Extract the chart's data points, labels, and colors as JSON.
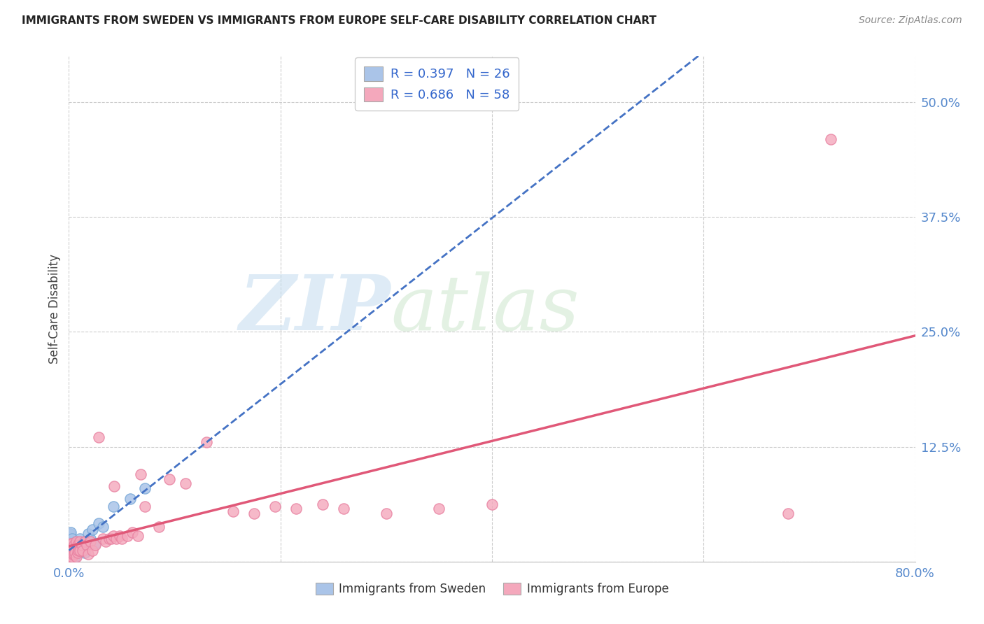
{
  "title": "IMMIGRANTS FROM SWEDEN VS IMMIGRANTS FROM EUROPE SELF-CARE DISABILITY CORRELATION CHART",
  "source": "Source: ZipAtlas.com",
  "ylabel": "Self-Care Disability",
  "watermark_zip": "ZIP",
  "watermark_atlas": "atlas",
  "xlim": [
    0.0,
    0.8
  ],
  "ylim": [
    0.0,
    0.55
  ],
  "sweden_R": 0.397,
  "sweden_N": 26,
  "europe_R": 0.686,
  "europe_N": 58,
  "sweden_color": "#aac4e8",
  "sweden_edge": "#7aaad8",
  "europe_color": "#f4a8bc",
  "europe_edge": "#e880a0",
  "sweden_line_color": "#4472c4",
  "europe_line_color": "#e05878",
  "background_color": "#ffffff",
  "grid_color": "#cccccc",
  "tick_color": "#5588cc",
  "sweden_x": [
    0.001,
    0.001,
    0.002,
    0.002,
    0.002,
    0.003,
    0.003,
    0.004,
    0.004,
    0.005,
    0.006,
    0.007,
    0.008,
    0.009,
    0.01,
    0.012,
    0.015,
    0.018,
    0.02,
    0.022,
    0.025,
    0.028,
    0.032,
    0.042,
    0.058,
    0.072
  ],
  "sweden_y": [
    0.02,
    0.03,
    0.012,
    0.022,
    0.032,
    0.01,
    0.025,
    0.015,
    0.008,
    0.018,
    0.005,
    0.022,
    0.012,
    0.01,
    0.025,
    0.015,
    0.01,
    0.03,
    0.025,
    0.035,
    0.02,
    0.042,
    0.038,
    0.06,
    0.068,
    0.08
  ],
  "europe_x": [
    0.001,
    0.001,
    0.002,
    0.002,
    0.002,
    0.003,
    0.003,
    0.003,
    0.004,
    0.004,
    0.005,
    0.005,
    0.006,
    0.007,
    0.007,
    0.008,
    0.008,
    0.009,
    0.01,
    0.01,
    0.012,
    0.013,
    0.015,
    0.017,
    0.018,
    0.02,
    0.022,
    0.025,
    0.028,
    0.032,
    0.035,
    0.038,
    0.04,
    0.042,
    0.043,
    0.045,
    0.048,
    0.05,
    0.055,
    0.06,
    0.065,
    0.068,
    0.072,
    0.085,
    0.095,
    0.11,
    0.13,
    0.155,
    0.175,
    0.195,
    0.215,
    0.24,
    0.26,
    0.3,
    0.35,
    0.4,
    0.68,
    0.72
  ],
  "europe_y": [
    0.005,
    0.012,
    0.008,
    0.015,
    0.02,
    0.005,
    0.01,
    0.02,
    0.008,
    0.015,
    0.008,
    0.018,
    0.01,
    0.005,
    0.022,
    0.01,
    0.018,
    0.012,
    0.012,
    0.022,
    0.018,
    0.012,
    0.022,
    0.018,
    0.008,
    0.022,
    0.012,
    0.018,
    0.135,
    0.025,
    0.022,
    0.025,
    0.025,
    0.028,
    0.082,
    0.025,
    0.028,
    0.025,
    0.028,
    0.032,
    0.028,
    0.095,
    0.06,
    0.038,
    0.09,
    0.085,
    0.13,
    0.055,
    0.052,
    0.06,
    0.058,
    0.062,
    0.058,
    0.052,
    0.058,
    0.062,
    0.052,
    0.46
  ]
}
